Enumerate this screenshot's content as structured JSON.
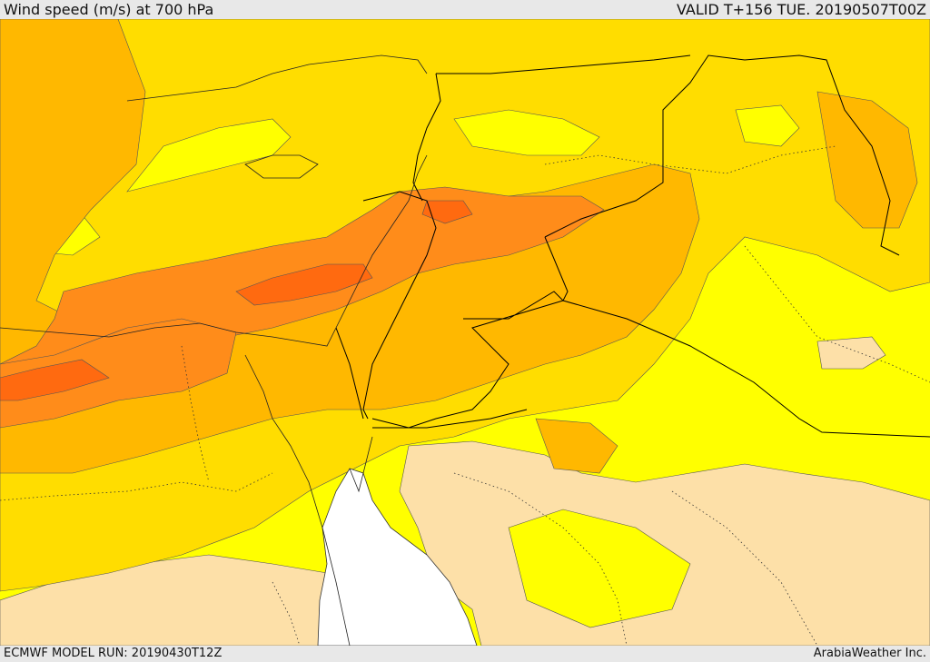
{
  "header": {
    "title": "Wind speed (m/s) at 700 hPa",
    "valid": "VALID T+156 TUE. 20190507T00Z"
  },
  "footer": {
    "model_run": "ECMWF MODEL RUN: 20190430T12Z",
    "credit": "ArabiaWeather Inc."
  },
  "colors": {
    "band_very_low": "#fde0a8",
    "band_low": "#ffff00",
    "band_mid": "#ffdd00",
    "band_high": "#ffb800",
    "band_very_high": "#ff8c1a",
    "band_max": "#ff6a10",
    "sea_gap": "#ffffff",
    "border_line": "#000000"
  }
}
